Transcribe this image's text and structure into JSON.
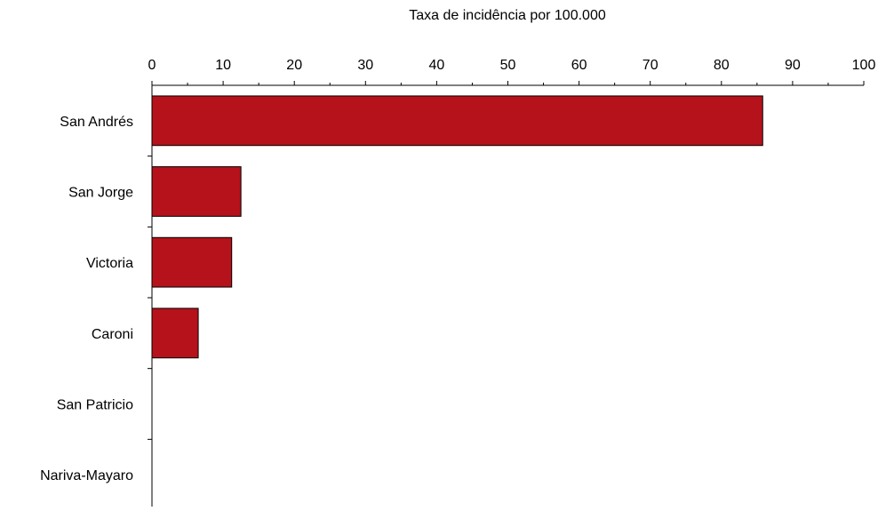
{
  "colors": {
    "bar": "#B5121B",
    "axis": "#000000",
    "background": "#FFFFFF"
  },
  "chart_data": {
    "type": "bar",
    "orientation": "horizontal",
    "xlabel": "Taxa de incidência por 100.000",
    "ylabel": "",
    "xlim": [
      0,
      100
    ],
    "x_ticks": [
      0,
      10,
      20,
      30,
      40,
      50,
      60,
      70,
      80,
      90,
      100
    ],
    "x_axis_position": "top",
    "grid": false,
    "legend": "none",
    "categories": [
      "San Andrés",
      "San Jorge",
      "Victoria",
      "Caroni",
      "San Patricio",
      "Nariva-Mayaro"
    ],
    "values": [
      85.8,
      12.5,
      11.2,
      6.5,
      0,
      0
    ]
  }
}
